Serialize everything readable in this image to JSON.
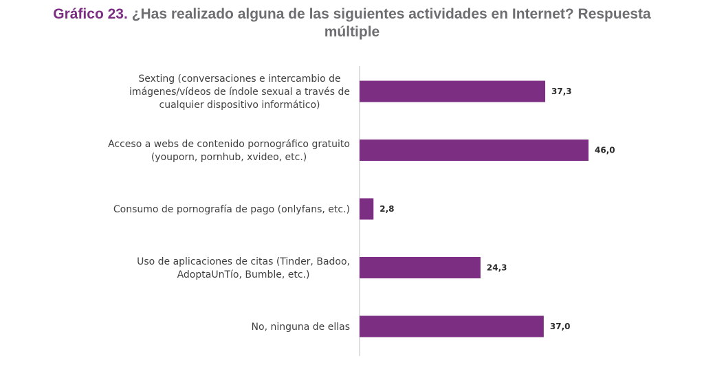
{
  "title": {
    "prefix": "Gráfico 23.",
    "line1": "¿Has realizado alguna de las siguientes actividades en Internet? Respuesta",
    "line2": "múltiple"
  },
  "colors": {
    "bar": "#7b2e82",
    "title_prefix": "#7b2e82",
    "title_text": "#6d6e71",
    "axis": "#bfbfbf"
  },
  "chart_data": {
    "type": "bar",
    "orientation": "horizontal",
    "categories": [
      "Sexting (conversaciones e intercambio de imágenes/vídeos de índole sexual a través de cualquier dispositivo informático)",
      "Acceso a webs de contenido pornográfico gratuito (youporn, pornhub, xvideo, etc.)",
      "Consumo de pornografía de pago (onlyfans, etc.)",
      "Uso de aplicaciones de citas (Tinder, Badoo, AdoptaUnTío, Bumble, etc.)",
      "No, ninguna de ellas"
    ],
    "category_lines": [
      [
        "Sexting (conversaciones e intercambio de",
        "imágenes/vídeos de índole sexual a través de",
        "cualquier dispositivo informático)"
      ],
      [
        "Acceso a webs de contenido pornográfico gratuito",
        "(youporn, pornhub, xvideo, etc.)"
      ],
      [
        "Consumo de pornografía de pago (onlyfans, etc.)"
      ],
      [
        "Uso de aplicaciones de citas (Tinder, Badoo,",
        "AdoptaUnTío, Bumble, etc.)"
      ],
      [
        "No, ninguna de ellas"
      ]
    ],
    "values": [
      37.3,
      46.0,
      2.8,
      24.3,
      37.0
    ],
    "value_labels": [
      "37,3",
      "46,0",
      "2,8",
      "24,3",
      "37,0"
    ],
    "xlim": [
      0,
      50
    ],
    "grid": false,
    "legend": "none",
    "title": "Gráfico 23. ¿Has realizado alguna de las siguientes actividades en Internet? Respuesta múltiple"
  }
}
